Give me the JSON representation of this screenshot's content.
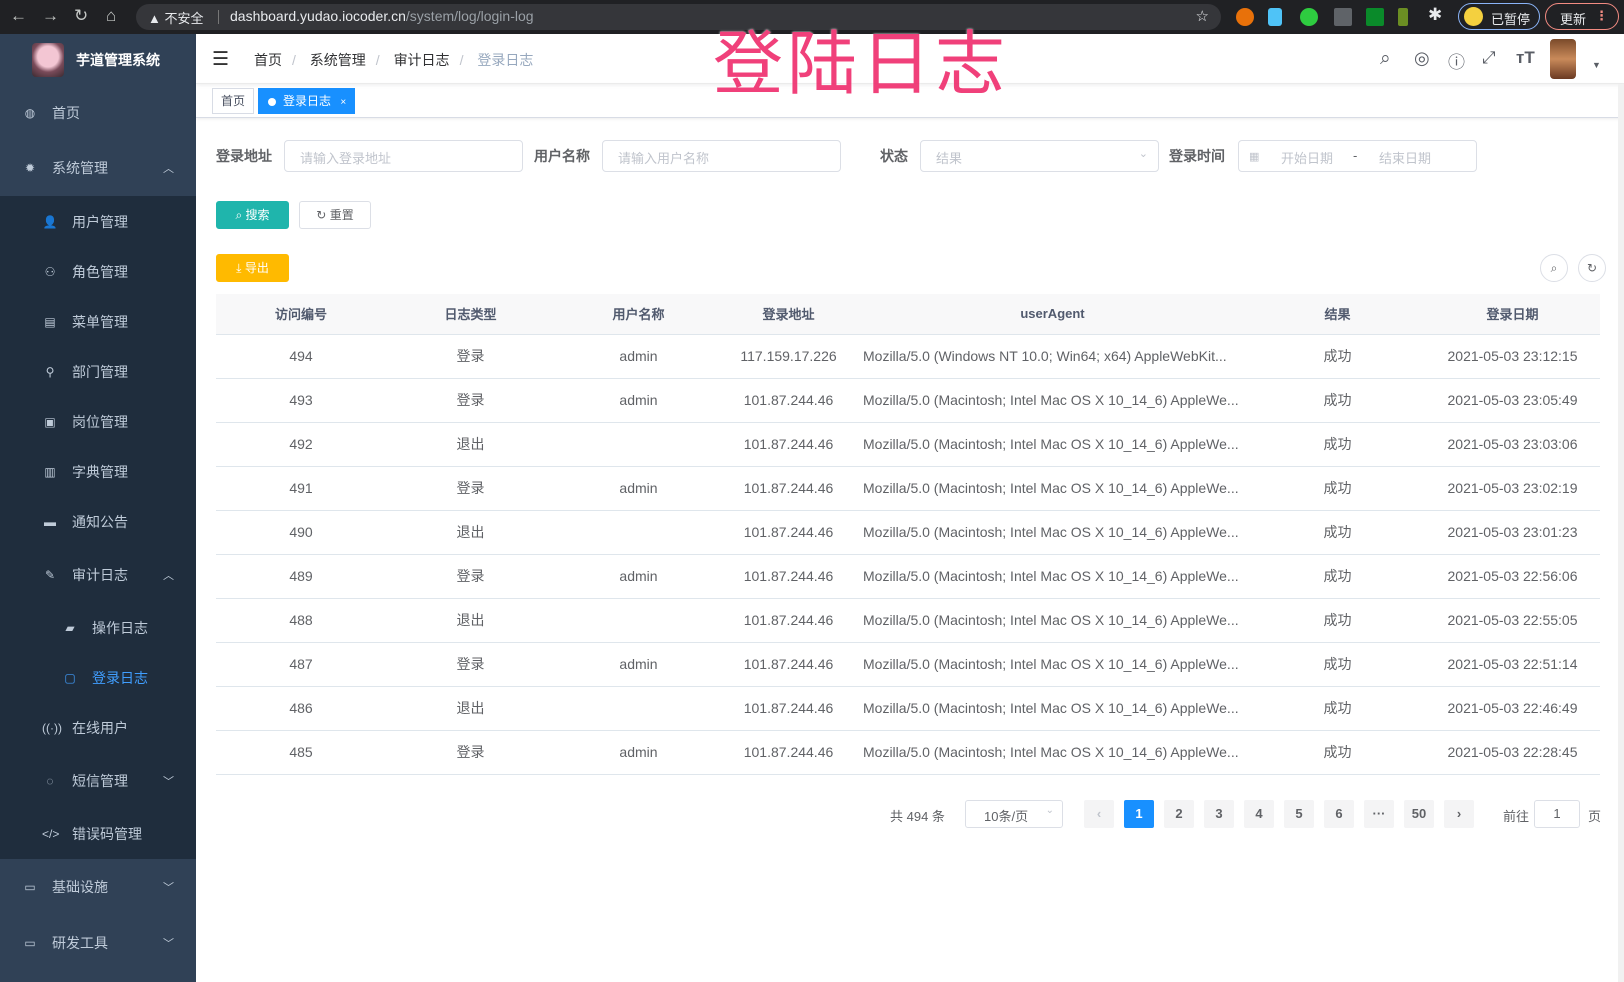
{
  "browser": {
    "security": "不安全",
    "url_host": "dashboard.yudao.iocoder.cn",
    "url_path": "/system/log/login-log",
    "paused_label": "已暂停",
    "update_label": "更新"
  },
  "overlay_title": "登陆日志",
  "sidebar": {
    "app_title": "芋道管理系统",
    "items": [
      {
        "label": "首页",
        "icon": "dashboard-icon"
      },
      {
        "label": "系统管理",
        "icon": "gear-icon",
        "expanded": true
      },
      {
        "label": "用户管理",
        "icon": "user-icon"
      },
      {
        "label": "角色管理",
        "icon": "peoples-icon"
      },
      {
        "label": "菜单管理",
        "icon": "tree-table-icon"
      },
      {
        "label": "部门管理",
        "icon": "tree-icon"
      },
      {
        "label": "岗位管理",
        "icon": "post-icon"
      },
      {
        "label": "字典管理",
        "icon": "dict-icon"
      },
      {
        "label": "通知公告",
        "icon": "message-icon"
      },
      {
        "label": "审计日志",
        "icon": "log-icon",
        "expanded": true
      },
      {
        "label": "操作日志",
        "icon": "form-icon"
      },
      {
        "label": "登录日志",
        "icon": "logininfor-icon",
        "active": true
      },
      {
        "label": "在线用户",
        "icon": "online-icon"
      },
      {
        "label": "短信管理",
        "icon": "validcode-icon",
        "expanded": false
      },
      {
        "label": "错误码管理",
        "icon": "code-icon"
      },
      {
        "label": "基础设施",
        "icon": "monitor-icon",
        "expanded": false
      },
      {
        "label": "研发工具",
        "icon": "tool-icon",
        "expanded": false
      }
    ]
  },
  "breadcrumb": [
    "首页",
    "系统管理",
    "审计日志",
    "登录日志"
  ],
  "tags": [
    {
      "label": "首页"
    },
    {
      "label": "登录日志",
      "active": true
    }
  ],
  "filters": {
    "address": {
      "label": "登录地址",
      "placeholder": "请输入登录地址"
    },
    "username": {
      "label": "用户名称",
      "placeholder": "请输入用户名称"
    },
    "status": {
      "label": "状态",
      "placeholder": "结果"
    },
    "time": {
      "label": "登录时间",
      "start_placeholder": "开始日期",
      "separator": "-",
      "end_placeholder": "结束日期"
    }
  },
  "buttons": {
    "search": "搜索",
    "reset": "重置",
    "export": "导出"
  },
  "colors": {
    "sidebar": "#304156",
    "submenu": "#1f2d3d",
    "primary": "#1890ff",
    "search": "#1fb5ac",
    "export": "#ffba00",
    "overlay": "#f0407a"
  },
  "table": {
    "columns": [
      "访问编号",
      "日志类型",
      "用户名称",
      "登录地址",
      "userAgent",
      "结果",
      "登录日期"
    ],
    "rows": [
      [
        "494",
        "登录",
        "admin",
        "117.159.17.226",
        "Mozilla/5.0 (Windows NT 10.0; Win64; x64) AppleWebKit...",
        "成功",
        "2021-05-03 23:12:15"
      ],
      [
        "493",
        "登录",
        "admin",
        "101.87.244.46",
        "Mozilla/5.0 (Macintosh; Intel Mac OS X 10_14_6) AppleWe...",
        "成功",
        "2021-05-03 23:05:49"
      ],
      [
        "492",
        "退出",
        "",
        "101.87.244.46",
        "Mozilla/5.0 (Macintosh; Intel Mac OS X 10_14_6) AppleWe...",
        "成功",
        "2021-05-03 23:03:06"
      ],
      [
        "491",
        "登录",
        "admin",
        "101.87.244.46",
        "Mozilla/5.0 (Macintosh; Intel Mac OS X 10_14_6) AppleWe...",
        "成功",
        "2021-05-03 23:02:19"
      ],
      [
        "490",
        "退出",
        "",
        "101.87.244.46",
        "Mozilla/5.0 (Macintosh; Intel Mac OS X 10_14_6) AppleWe...",
        "成功",
        "2021-05-03 23:01:23"
      ],
      [
        "489",
        "登录",
        "admin",
        "101.87.244.46",
        "Mozilla/5.0 (Macintosh; Intel Mac OS X 10_14_6) AppleWe...",
        "成功",
        "2021-05-03 22:56:06"
      ],
      [
        "488",
        "退出",
        "",
        "101.87.244.46",
        "Mozilla/5.0 (Macintosh; Intel Mac OS X 10_14_6) AppleWe...",
        "成功",
        "2021-05-03 22:55:05"
      ],
      [
        "487",
        "登录",
        "admin",
        "101.87.244.46",
        "Mozilla/5.0 (Macintosh; Intel Mac OS X 10_14_6) AppleWe...",
        "成功",
        "2021-05-03 22:51:14"
      ],
      [
        "486",
        "退出",
        "",
        "101.87.244.46",
        "Mozilla/5.0 (Macintosh; Intel Mac OS X 10_14_6) AppleWe...",
        "成功",
        "2021-05-03 22:46:49"
      ],
      [
        "485",
        "登录",
        "admin",
        "101.87.244.46",
        "Mozilla/5.0 (Macintosh; Intel Mac OS X 10_14_6) AppleWe...",
        "成功",
        "2021-05-03 22:28:45"
      ]
    ]
  },
  "pagination": {
    "total_text": "共 494 条",
    "page_size": "10条/页",
    "pages": [
      "1",
      "2",
      "3",
      "4",
      "5",
      "6",
      "···",
      "50"
    ],
    "current": "1",
    "goto_label": "前往",
    "goto_value": "1",
    "goto_suffix": "页"
  }
}
